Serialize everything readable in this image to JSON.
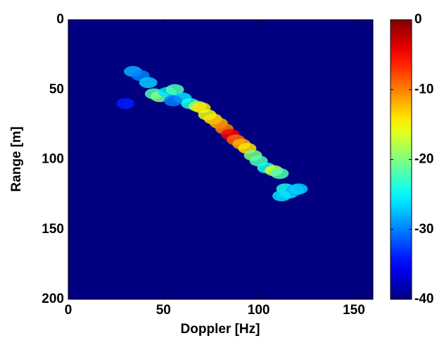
{
  "chart_data": {
    "type": "heatmap",
    "x_label": "Doppler [Hz]",
    "y_label": "Range [m]",
    "xlim": [
      0,
      160
    ],
    "xticks": [
      0,
      50,
      100,
      150
    ],
    "ylim": [
      0,
      200
    ],
    "yticks": [
      0,
      50,
      100,
      150,
      200
    ],
    "y_reversed": true,
    "clim": [
      -40,
      0
    ],
    "cticks": [
      0,
      -10,
      -20,
      -30,
      -40
    ],
    "colormap": "jet",
    "x": [
      34,
      38,
      42,
      45,
      48,
      52,
      56,
      60,
      64,
      68,
      70,
      73,
      76,
      79,
      82,
      85,
      88,
      91,
      94,
      97,
      100,
      104,
      108,
      111,
      114,
      116,
      119,
      121,
      112,
      30,
      55
    ],
    "y": [
      37,
      40,
      45,
      53,
      55,
      52,
      50,
      56,
      60,
      62,
      63,
      68,
      71,
      74,
      78,
      82,
      86,
      89,
      92,
      97,
      101,
      106,
      108,
      110,
      121,
      124,
      122,
      121,
      126,
      60,
      58
    ],
    "values": [
      -28,
      -30,
      -27,
      -22,
      -20,
      -26,
      -22,
      -26,
      -24,
      -18,
      -14,
      -16,
      -14,
      -12,
      -10,
      -5,
      -9,
      -12,
      -14,
      -20,
      -22,
      -24,
      -17,
      -22,
      -24,
      -26,
      -28,
      -27,
      -26,
      -34,
      -30
    ]
  }
}
